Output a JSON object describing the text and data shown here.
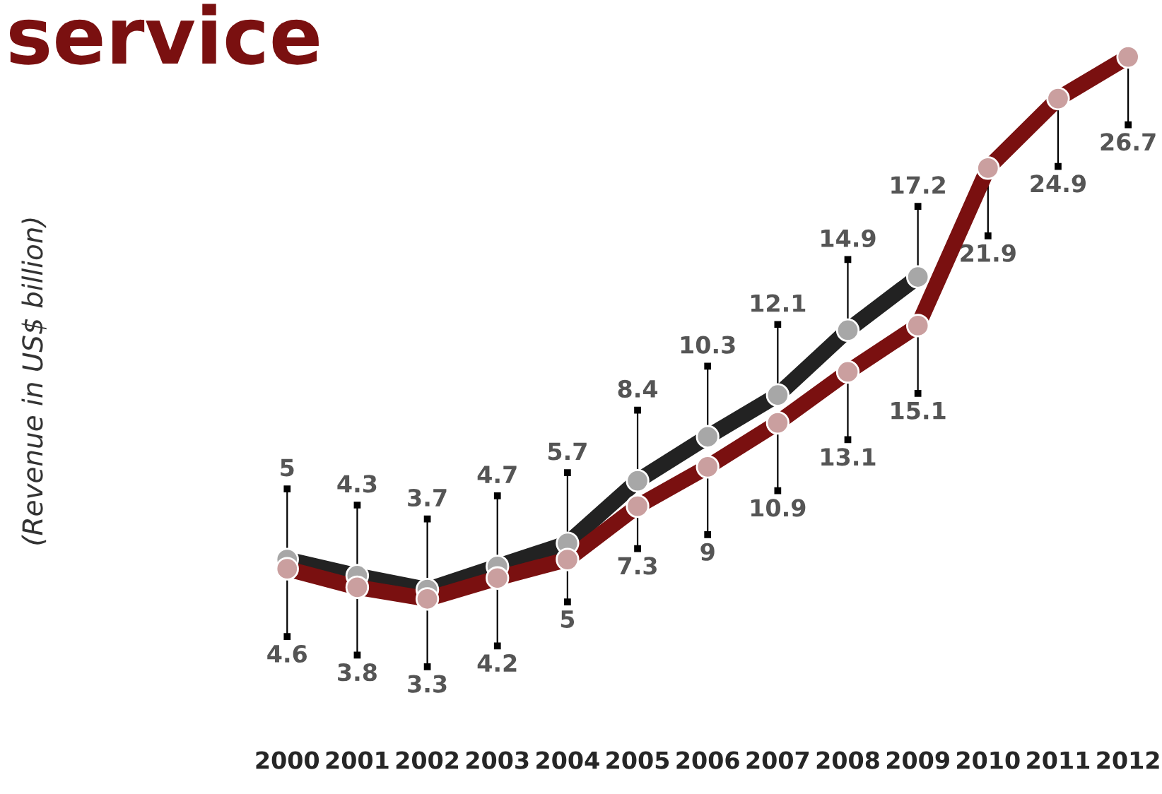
{
  "chart_data": {
    "type": "line",
    "title": "service",
    "categories": [
      "2000",
      "2001",
      "2002",
      "2003",
      "2004",
      "2005",
      "2006",
      "2007",
      "2008",
      "2009",
      "2010",
      "2011",
      "2012"
    ],
    "series": [
      {
        "color": "#222222",
        "values": [
          5,
          4.3,
          3.7,
          4.7,
          5.7,
          8.4,
          10.3,
          12.1,
          14.9,
          17.2,
          null,
          null,
          null
        ]
      },
      {
        "color": "#7a1010",
        "values": [
          4.6,
          3.8,
          3.3,
          4.2,
          5,
          7.3,
          9,
          10.9,
          13.1,
          15.1,
          21.9,
          24.9,
          26.7
        ]
      }
    ],
    "annotations": [
      "(Revenue in US$ billion)"
    ],
    "data_labels": true,
    "marker": "circle"
  }
}
